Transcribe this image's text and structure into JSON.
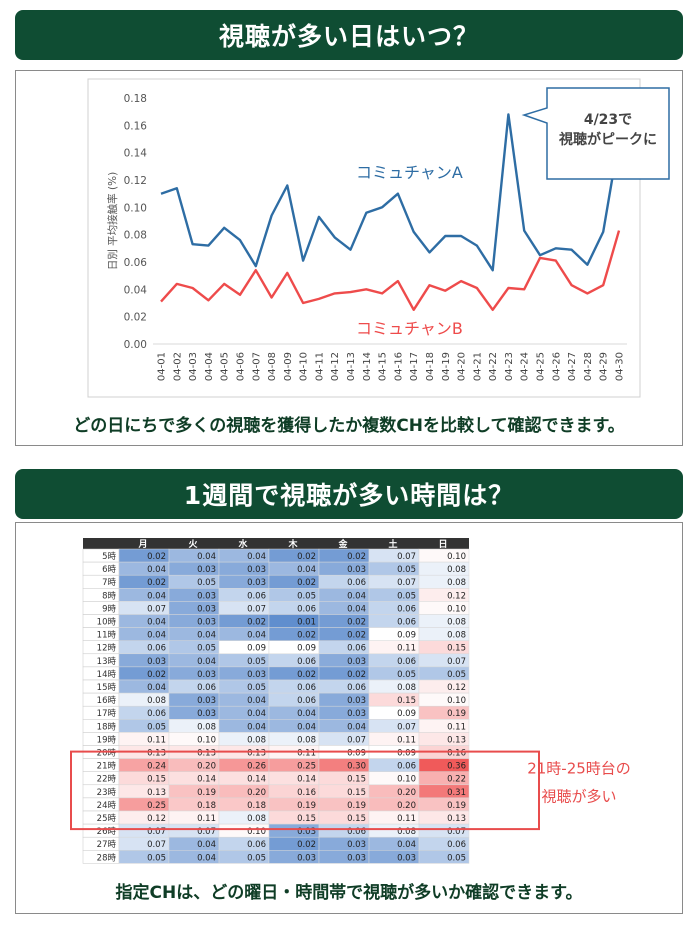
{
  "section1": {
    "title": "視聴が多い日はいつ？",
    "caption": "どの日にちで多くの視聴を獲得したか複数CHを比較して確認できます。",
    "callout_line1": "4/23で",
    "callout_line2": "視聴がピークに"
  },
  "section2": {
    "title": "1週間で視聴が多い時間は？",
    "caption": "指定CHは、どの曜日・時間帯で視聴が多いか確認できます。",
    "highlight_line1": "21時-25時台の",
    "highlight_line2": "視聴が多い"
  },
  "colors": {
    "banner": "#0f4d33",
    "series_a": "#2e6da4",
    "series_b": "#ee4b4b",
    "highlight": "#e84c4c"
  },
  "chart_data": [
    {
      "type": "line",
      "ylabel": "日別 平均接触率 (%)",
      "ylim": [
        0,
        0.18
      ],
      "yticks": [
        "0.00",
        "0.02",
        "0.04",
        "0.06",
        "0.08",
        "0.10",
        "0.12",
        "0.14",
        "0.16",
        "0.18"
      ],
      "grid": false,
      "x": [
        "04-01",
        "04-02",
        "04-03",
        "04-04",
        "04-05",
        "04-06",
        "04-07",
        "04-08",
        "04-09",
        "04-10",
        "04-11",
        "04-12",
        "04-13",
        "04-14",
        "04-15",
        "04-16",
        "04-17",
        "04-18",
        "04-19",
        "04-20",
        "04-21",
        "04-22",
        "04-23",
        "04-24",
        "04-25",
        "04-26",
        "04-27",
        "04-28",
        "04-29",
        "04-30"
      ],
      "series": [
        {
          "name": "コミュチャンA",
          "values": [
            0.11,
            0.114,
            0.073,
            0.072,
            0.085,
            0.076,
            0.057,
            0.094,
            0.116,
            0.061,
            0.093,
            0.078,
            0.069,
            0.096,
            0.1,
            0.11,
            0.082,
            0.067,
            0.079,
            0.079,
            0.072,
            0.054,
            0.168,
            0.083,
            0.065,
            0.07,
            0.069,
            0.058,
            0.082,
            0.15
          ]
        },
        {
          "name": "コミュチャンB",
          "values": [
            0.031,
            0.044,
            0.041,
            0.032,
            0.044,
            0.036,
            0.054,
            0.034,
            0.052,
            0.03,
            0.033,
            0.037,
            0.038,
            0.04,
            0.037,
            0.046,
            0.025,
            0.043,
            0.039,
            0.046,
            0.041,
            0.025,
            0.041,
            0.04,
            0.063,
            0.061,
            0.043,
            0.037,
            0.043,
            0.083
          ]
        }
      ]
    },
    {
      "type": "heatmap",
      "columns": [
        "月",
        "火",
        "水",
        "木",
        "金",
        "土",
        "日"
      ],
      "rows": [
        "5時",
        "6時",
        "7時",
        "8時",
        "9時",
        "10時",
        "11時",
        "12時",
        "13時",
        "14時",
        "15時",
        "16時",
        "17時",
        "18時",
        "19時",
        "20時",
        "21時",
        "22時",
        "23時",
        "24時",
        "25時",
        "26時",
        "27時",
        "28時"
      ],
      "values": [
        [
          "0.02",
          "0.04",
          "0.04",
          "0.02",
          "0.02",
          "0.07",
          "0.10"
        ],
        [
          "0.04",
          "0.03",
          "0.03",
          "0.04",
          "0.03",
          "0.05",
          "0.08"
        ],
        [
          "0.02",
          "0.05",
          "0.03",
          "0.02",
          "0.06",
          "0.07",
          "0.08"
        ],
        [
          "0.04",
          "0.03",
          "0.06",
          "0.05",
          "0.04",
          "0.05",
          "0.12"
        ],
        [
          "0.07",
          "0.03",
          "0.07",
          "0.06",
          "0.04",
          "0.06",
          "0.10"
        ],
        [
          "0.04",
          "0.03",
          "0.02",
          "0.01",
          "0.02",
          "0.06",
          "0.08"
        ],
        [
          "0.04",
          "0.04",
          "0.04",
          "0.02",
          "0.02",
          "0.09",
          "0.08"
        ],
        [
          "0.06",
          "0.05",
          "0.09",
          "0.09",
          "0.06",
          "0.11",
          "0.15"
        ],
        [
          "0.03",
          "0.04",
          "0.05",
          "0.06",
          "0.03",
          "0.06",
          "0.07"
        ],
        [
          "0.02",
          "0.03",
          "0.03",
          "0.02",
          "0.02",
          "0.05",
          "0.05"
        ],
        [
          "0.04",
          "0.06",
          "0.05",
          "0.06",
          "0.06",
          "0.08",
          "0.12"
        ],
        [
          "0.08",
          "0.03",
          "0.04",
          "0.06",
          "0.03",
          "0.15",
          "0.10"
        ],
        [
          "0.06",
          "0.03",
          "0.04",
          "0.04",
          "0.03",
          "0.09",
          "0.19"
        ],
        [
          "0.05",
          "0.08",
          "0.04",
          "0.04",
          "0.04",
          "0.07",
          "0.11"
        ],
        [
          "0.11",
          "0.10",
          "0.08",
          "0.08",
          "0.07",
          "0.11",
          "0.13"
        ],
        [
          "0.13",
          "0.13",
          "0.13",
          "0.11",
          "0.09",
          "0.09",
          "0.16"
        ],
        [
          "0.24",
          "0.20",
          "0.26",
          "0.25",
          "0.30",
          "0.06",
          "0.36"
        ],
        [
          "0.15",
          "0.14",
          "0.14",
          "0.14",
          "0.15",
          "0.10",
          "0.22"
        ],
        [
          "0.13",
          "0.19",
          "0.20",
          "0.16",
          "0.15",
          "0.20",
          "0.31"
        ],
        [
          "0.25",
          "0.18",
          "0.18",
          "0.19",
          "0.19",
          "0.20",
          "0.19"
        ],
        [
          "0.12",
          "0.11",
          "0.08",
          "0.15",
          "0.15",
          "0.11",
          "0.13"
        ],
        [
          "0.07",
          "0.07",
          "0.10",
          "0.03",
          "0.06",
          "0.08",
          "0.07"
        ],
        [
          "0.07",
          "0.04",
          "0.06",
          "0.02",
          "0.03",
          "0.04",
          "0.06"
        ],
        [
          "0.05",
          "0.04",
          "0.05",
          "0.03",
          "0.03",
          "0.03",
          "0.05"
        ]
      ]
    }
  ]
}
